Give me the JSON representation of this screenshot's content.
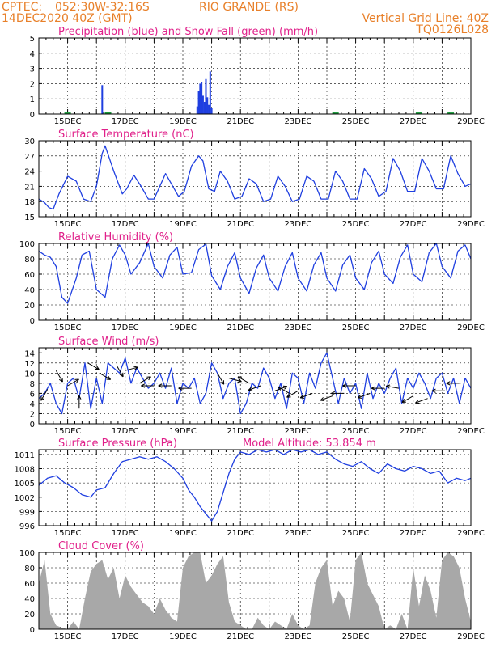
{
  "header": {
    "line1_left": "CPTEC:",
    "line1_coords": "052:30W-32:16S",
    "line1_place": "RIO GRANDE (RS)",
    "line2_left": "14DEC2020 40Z (GMT)",
    "line2_right": "Vertical Grid Line: 40Z",
    "line3_right": "TQ0126L028"
  },
  "colors": {
    "header": "#e8802a",
    "title": "#e0208a",
    "series": "#1f3fe0",
    "snow": "#1a9a3a",
    "cloud": "#a8a8a8"
  },
  "chart_data": [
    {
      "type": "bar",
      "title": "Precipitation (blue) and Snow Fall (green) (mm/h)",
      "x_labels": [
        "15DEC",
        "17DEC",
        "19DEC",
        "21DEC",
        "23DEC",
        "25DEC",
        "27DEC",
        "29DEC"
      ],
      "y_ticks": [
        0,
        1,
        2,
        3,
        4,
        5
      ],
      "ylim": [
        0,
        5
      ],
      "xlim": [
        14.0,
        29.0
      ],
      "precip": [
        [
          16.2,
          1.9
        ],
        [
          19.5,
          0.5
        ],
        [
          19.55,
          1.5
        ],
        [
          19.6,
          2.0
        ],
        [
          19.65,
          2.1
        ],
        [
          19.7,
          1.2
        ],
        [
          19.75,
          0.8
        ],
        [
          19.8,
          2.3
        ],
        [
          19.85,
          1.1
        ],
        [
          19.9,
          0.6
        ],
        [
          19.95,
          2.8
        ],
        [
          20.0,
          0.4
        ]
      ],
      "snow": [
        [
          15.0,
          0.05
        ],
        [
          16.4,
          0.08
        ],
        [
          24.3,
          0.05
        ],
        [
          27.2,
          0.05
        ],
        [
          28.3,
          0.05
        ]
      ]
    },
    {
      "type": "line",
      "title": "Surface Temperature (nC)",
      "x_labels": [
        "15DEC",
        "17DEC",
        "19DEC",
        "21DEC",
        "23DEC",
        "25DEC",
        "27DEC",
        "29DEC"
      ],
      "y_ticks": [
        15,
        18,
        21,
        24,
        27,
        30
      ],
      "ylim": [
        15,
        30
      ],
      "xlim": [
        14.0,
        29.0
      ],
      "x": [
        14.0,
        14.2,
        14.35,
        14.5,
        14.7,
        15.0,
        15.3,
        15.55,
        15.8,
        16.0,
        16.2,
        16.3,
        16.6,
        16.9,
        17.05,
        17.3,
        17.55,
        17.8,
        18.0,
        18.2,
        18.4,
        18.6,
        18.85,
        19.05,
        19.3,
        19.55,
        19.7,
        19.9,
        20.1,
        20.3,
        20.55,
        20.8,
        21.05,
        21.3,
        21.55,
        21.8,
        22.05,
        22.3,
        22.55,
        22.8,
        23.05,
        23.3,
        23.55,
        23.8,
        24.05,
        24.3,
        24.55,
        24.8,
        25.05,
        25.3,
        25.55,
        25.8,
        26.05,
        26.3,
        26.55,
        26.8,
        27.05,
        27.3,
        27.55,
        27.8,
        28.05,
        28.3,
        28.55,
        28.8,
        29.0
      ],
      "y": [
        18.5,
        17.8,
        16.8,
        16.5,
        19.5,
        23.0,
        22.0,
        18.5,
        18.0,
        21.0,
        27.5,
        29.0,
        24.0,
        19.5,
        20.5,
        23.2,
        21.0,
        18.5,
        18.5,
        21.0,
        23.5,
        21.5,
        19.0,
        20.0,
        25.0,
        27.0,
        26.0,
        20.5,
        20.0,
        24.0,
        22.0,
        18.5,
        19.0,
        22.5,
        21.5,
        18.0,
        18.5,
        23.0,
        21.0,
        18.0,
        18.5,
        23.0,
        22.0,
        18.5,
        18.5,
        24.0,
        22.0,
        18.5,
        18.5,
        24.5,
        22.5,
        19.0,
        20.0,
        26.5,
        24.0,
        20.0,
        20.0,
        26.5,
        24.0,
        20.5,
        20.5,
        27.0,
        23.5,
        21.0,
        21.5
      ]
    },
    {
      "type": "line",
      "title": "Relative Humidity (%)",
      "x_labels": [
        "15DEC",
        "17DEC",
        "19DEC",
        "21DEC",
        "23DEC",
        "25DEC",
        "27DEC",
        "29DEC"
      ],
      "y_ticks": [
        0,
        20,
        40,
        60,
        80,
        100
      ],
      "ylim": [
        0,
        100
      ],
      "xlim": [
        14.0,
        29.0
      ],
      "x": [
        14.0,
        14.2,
        14.4,
        14.6,
        14.8,
        15.0,
        15.3,
        15.5,
        15.75,
        16.0,
        16.3,
        16.55,
        16.8,
        17.0,
        17.2,
        17.5,
        17.8,
        18.0,
        18.3,
        18.55,
        18.8,
        19.0,
        19.3,
        19.55,
        19.8,
        20.0,
        20.3,
        20.55,
        20.8,
        21.0,
        21.3,
        21.55,
        21.8,
        22.0,
        22.3,
        22.55,
        22.8,
        23.0,
        23.3,
        23.55,
        23.8,
        24.0,
        24.3,
        24.55,
        24.8,
        25.0,
        25.3,
        25.55,
        25.8,
        26.0,
        26.3,
        26.55,
        26.8,
        27.0,
        27.3,
        27.55,
        27.8,
        28.0,
        28.3,
        28.55,
        28.8,
        29.0
      ],
      "y": [
        90,
        85,
        82,
        70,
        30,
        22,
        55,
        85,
        90,
        40,
        30,
        80,
        98,
        85,
        60,
        75,
        100,
        70,
        55,
        85,
        95,
        60,
        62,
        92,
        99,
        58,
        40,
        70,
        88,
        55,
        35,
        68,
        85,
        55,
        38,
        70,
        88,
        55,
        38,
        72,
        88,
        55,
        38,
        72,
        85,
        55,
        40,
        75,
        90,
        60,
        48,
        82,
        98,
        60,
        50,
        88,
        100,
        70,
        55,
        90,
        98,
        80
      ]
    },
    {
      "type": "line",
      "title": "Surface Wind (m/s)",
      "x_labels": [
        "15DEC",
        "17DEC",
        "19DEC",
        "21DEC",
        "23DEC",
        "25DEC",
        "27DEC",
        "29DEC"
      ],
      "y_ticks": [
        0,
        2,
        4,
        6,
        8,
        10,
        12,
        14
      ],
      "ylim": [
        0,
        15
      ],
      "xlim": [
        14.0,
        29.0
      ],
      "x": [
        14.0,
        14.2,
        14.4,
        14.6,
        14.8,
        15.0,
        15.2,
        15.4,
        15.6,
        15.8,
        16.0,
        16.2,
        16.4,
        16.6,
        16.8,
        17.0,
        17.2,
        17.4,
        17.6,
        17.8,
        18.0,
        18.2,
        18.4,
        18.6,
        18.8,
        19.0,
        19.2,
        19.4,
        19.6,
        19.8,
        20.0,
        20.2,
        20.4,
        20.6,
        20.8,
        21.0,
        21.2,
        21.4,
        21.6,
        21.8,
        22.0,
        22.2,
        22.4,
        22.6,
        22.8,
        23.0,
        23.2,
        23.4,
        23.6,
        23.8,
        24.0,
        24.2,
        24.4,
        24.6,
        24.8,
        25.0,
        25.2,
        25.4,
        25.6,
        25.8,
        26.0,
        26.2,
        26.4,
        26.6,
        26.8,
        27.0,
        27.2,
        27.4,
        27.6,
        27.8,
        28.0,
        28.2,
        28.4,
        28.6,
        28.8,
        29.0
      ],
      "y": [
        5,
        6,
        8,
        4,
        2,
        8,
        9,
        5,
        12,
        3,
        9,
        4,
        12,
        11,
        10,
        13,
        8,
        11,
        9,
        7,
        8,
        10,
        7,
        11,
        4,
        8,
        7,
        9,
        4,
        6,
        12,
        10,
        5,
        8,
        9,
        2,
        4,
        8,
        7,
        11,
        9,
        5,
        8,
        3,
        10,
        9,
        4,
        10,
        7,
        12,
        14,
        9,
        4,
        9,
        6,
        8,
        3,
        10,
        5,
        8,
        6,
        9,
        11,
        4,
        9,
        7,
        10,
        8,
        5,
        9,
        10,
        6,
        9,
        4,
        9,
        7
      ],
      "arrows": [
        [
          14.3,
          6.8,
          240
        ],
        [
          14.6,
          10.5,
          300
        ],
        [
          15.0,
          7.5,
          30
        ],
        [
          15.4,
          3,
          90
        ],
        [
          15.7,
          12,
          330
        ],
        [
          16.1,
          10,
          330
        ],
        [
          16.7,
          11.5,
          300
        ],
        [
          17.0,
          10.5,
          15
        ],
        [
          17.5,
          8,
          30
        ],
        [
          18.0,
          7.5,
          180
        ],
        [
          18.6,
          7.5,
          180
        ],
        [
          19.3,
          7,
          180
        ],
        [
          20.2,
          10,
          300
        ],
        [
          20.6,
          9,
          345
        ],
        [
          21.3,
          8,
          150
        ],
        [
          21.7,
          7.5,
          200
        ],
        [
          22.2,
          6.5,
          20
        ],
        [
          22.7,
          6,
          150
        ],
        [
          23.0,
          6.5,
          210
        ],
        [
          23.5,
          6,
          200
        ],
        [
          24.2,
          5.5,
          200
        ],
        [
          24.6,
          6,
          180
        ],
        [
          25.0,
          7.5,
          180
        ],
        [
          25.5,
          6,
          200
        ],
        [
          26.0,
          7,
          180
        ],
        [
          26.5,
          7,
          170
        ],
        [
          27.0,
          5.5,
          210
        ],
        [
          27.5,
          5,
          200
        ],
        [
          28.1,
          6.5,
          180
        ],
        [
          28.6,
          8,
          180
        ]
      ]
    },
    {
      "type": "line",
      "title": "Surface Pressure (hPa)",
      "annotation": "Model Altitude: 53.854  m",
      "x_labels": [
        "15DEC",
        "17DEC",
        "19DEC",
        "21DEC",
        "23DEC",
        "25DEC",
        "27DEC",
        "29DEC"
      ],
      "y_ticks": [
        996,
        999,
        1002,
        1005,
        1008,
        1011
      ],
      "ylim": [
        996,
        1012
      ],
      "xlim": [
        14.0,
        29.0
      ],
      "x": [
        14.0,
        14.3,
        14.6,
        14.9,
        15.2,
        15.5,
        15.8,
        16.0,
        16.3,
        16.6,
        16.9,
        17.2,
        17.5,
        17.8,
        18.1,
        18.4,
        18.7,
        19.0,
        19.2,
        19.4,
        19.6,
        19.8,
        20.0,
        20.2,
        20.4,
        20.6,
        20.8,
        21.0,
        21.3,
        21.6,
        21.9,
        22.2,
        22.5,
        22.8,
        23.1,
        23.4,
        23.7,
        24.0,
        24.3,
        24.6,
        24.9,
        25.2,
        25.5,
        25.8,
        26.1,
        26.4,
        26.7,
        27.0,
        27.3,
        27.6,
        27.9,
        28.2,
        28.5,
        28.8,
        29.0
      ],
      "y": [
        1004.5,
        1006,
        1006.5,
        1005,
        1004,
        1002.5,
        1002,
        1003.5,
        1004,
        1007,
        1009.5,
        1010,
        1010.5,
        1010,
        1010.5,
        1009.5,
        1008,
        1006,
        1003.5,
        1002,
        1000,
        998.5,
        997,
        999,
        1003,
        1007,
        1010,
        1011.5,
        1011,
        1012,
        1011.5,
        1012,
        1011,
        1012,
        1011.5,
        1012,
        1011,
        1011.5,
        1010,
        1009,
        1008.5,
        1009.5,
        1008,
        1007,
        1009,
        1008,
        1007.5,
        1008.5,
        1008,
        1007,
        1007.5,
        1005,
        1006,
        1005.5,
        1006
      ]
    },
    {
      "type": "area",
      "title": "Cloud Cover (%)",
      "x_labels": [
        "15DEC",
        "17DEC",
        "19DEC",
        "21DEC",
        "23DEC",
        "25DEC",
        "27DEC",
        "29DEC"
      ],
      "y_ticks": [
        0,
        20,
        40,
        60,
        80,
        100
      ],
      "ylim": [
        0,
        100
      ],
      "xlim": [
        14.0,
        29.0
      ],
      "x": [
        14.0,
        14.2,
        14.4,
        14.6,
        14.8,
        15.0,
        15.2,
        15.4,
        15.6,
        15.8,
        16.0,
        16.2,
        16.4,
        16.6,
        16.8,
        17.0,
        17.2,
        17.4,
        17.6,
        17.8,
        18.0,
        18.2,
        18.4,
        18.6,
        18.8,
        19.0,
        19.2,
        19.4,
        19.6,
        19.8,
        20.0,
        20.2,
        20.4,
        20.6,
        20.8,
        21.0,
        21.2,
        21.4,
        21.6,
        21.8,
        22.0,
        22.2,
        22.4,
        22.6,
        22.8,
        23.0,
        23.2,
        23.4,
        23.6,
        23.8,
        24.0,
        24.2,
        24.4,
        24.6,
        24.8,
        25.0,
        25.2,
        25.4,
        25.6,
        25.8,
        26.0,
        26.2,
        26.4,
        26.6,
        26.8,
        27.0,
        27.2,
        27.4,
        27.6,
        27.8,
        28.0,
        28.2,
        28.4,
        28.6,
        28.8,
        29.0
      ],
      "y": [
        60,
        90,
        20,
        5,
        2,
        0,
        10,
        0,
        40,
        75,
        85,
        90,
        65,
        80,
        40,
        70,
        55,
        45,
        35,
        30,
        20,
        40,
        25,
        15,
        10,
        80,
        95,
        100,
        100,
        60,
        70,
        85,
        95,
        35,
        10,
        5,
        0,
        0,
        15,
        5,
        0,
        10,
        5,
        0,
        20,
        5,
        0,
        5,
        60,
        80,
        90,
        30,
        50,
        40,
        10,
        90,
        100,
        60,
        45,
        30,
        0,
        5,
        0,
        20,
        0,
        80,
        30,
        70,
        50,
        15,
        90,
        100,
        95,
        80,
        40,
        10
      ]
    }
  ]
}
